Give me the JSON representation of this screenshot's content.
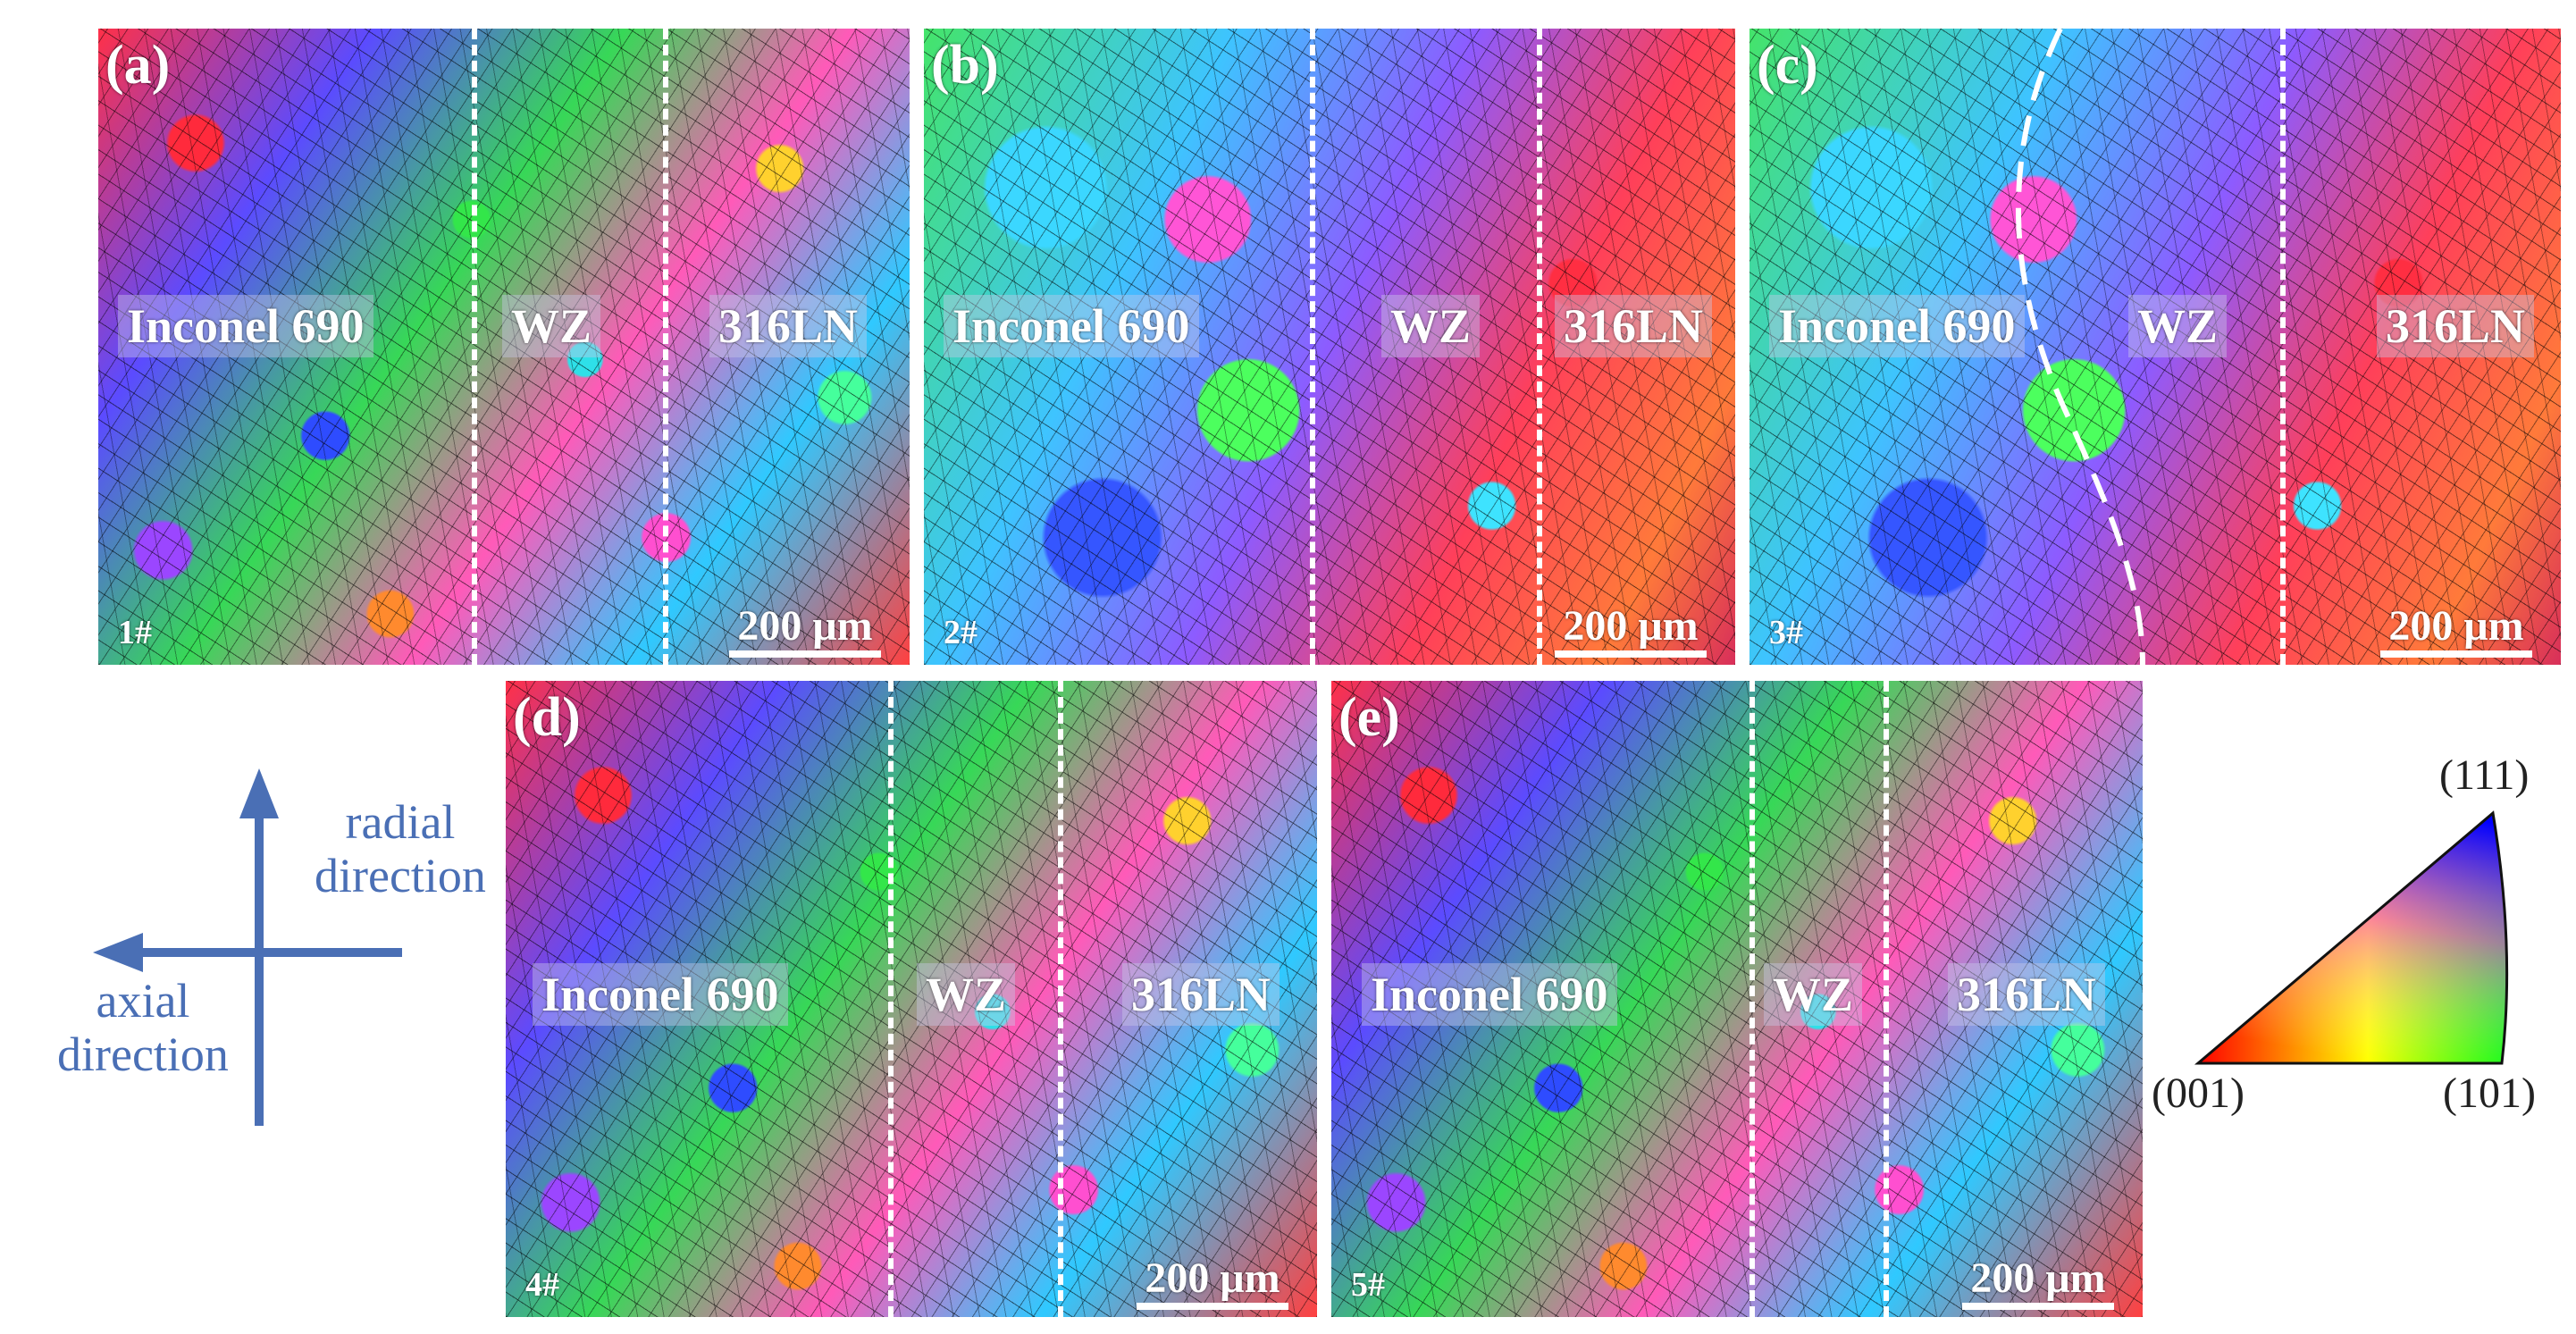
{
  "panels": [
    {
      "letter": "(a)",
      "sample": "1#",
      "zones": [
        "Inconel 690",
        "WZ",
        "316LN"
      ],
      "scale": "200 μm"
    },
    {
      "letter": "(b)",
      "sample": "2#",
      "zones": [
        "Inconel 690",
        "WZ",
        "316LN"
      ],
      "scale": "200 μm"
    },
    {
      "letter": "(c)",
      "sample": "3#",
      "zones": [
        "Inconel 690",
        "WZ",
        "316LN"
      ],
      "scale": "200 μm"
    },
    {
      "letter": "(d)",
      "sample": "4#",
      "zones": [
        "Inconel 690",
        "WZ",
        "316LN"
      ],
      "scale": "200 μm"
    },
    {
      "letter": "(e)",
      "sample": "5#",
      "zones": [
        "Inconel 690",
        "WZ",
        "316LN"
      ],
      "scale": "200 μm"
    }
  ],
  "axes": {
    "radial_line1": "radial",
    "radial_line2": "direction",
    "axial_line1": "axial",
    "axial_line2": "direction",
    "color": "#4a6fb5"
  },
  "ipf_key": {
    "top": "(111)",
    "left": "(001)",
    "right": "(101)",
    "colors": {
      "001": "#ff0000",
      "101": "#00ff00",
      "111": "#0000ff"
    }
  }
}
